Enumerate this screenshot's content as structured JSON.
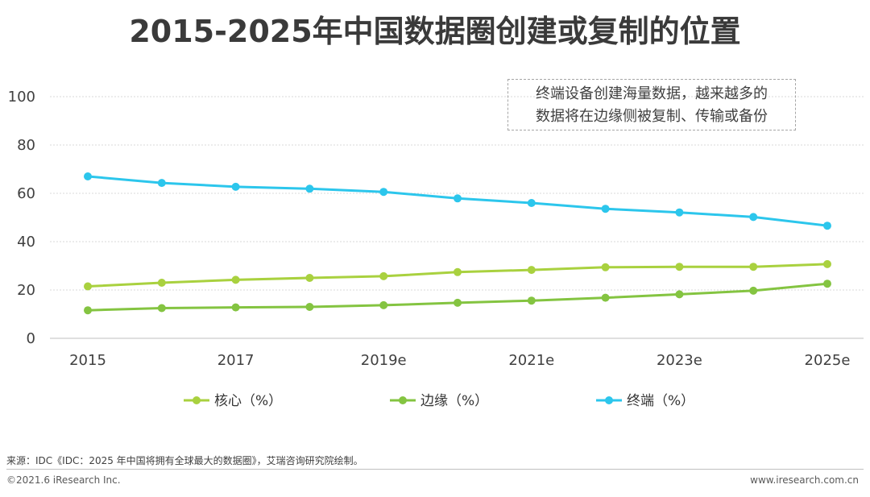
{
  "title": "2015-2025年中国数据圈创建或复制的位置",
  "annotation": {
    "line1": "终端设备创建海量数据，越来越多的",
    "line2": "数据将在边缘侧被复制、传输或备份"
  },
  "footer": {
    "source": "来源：IDC《IDC：2025 年中国将拥有全球最大的数据圈》，艾瑞咨询研究院绘制。",
    "copyright": "©2021.6 iResearch Inc.",
    "site": "www.iresearch.com.cn"
  },
  "chart_data": {
    "type": "line",
    "x": [
      "2015",
      "2016",
      "2017",
      "2018",
      "2019e",
      "2020",
      "2021e",
      "2022",
      "2023e",
      "2024",
      "2025e"
    ],
    "x_tick_labels": [
      "2015",
      "",
      "2017",
      "",
      "2019e",
      "",
      "2021e",
      "",
      "2023e",
      "",
      "2025e"
    ],
    "ylim": [
      0,
      100
    ],
    "yticks": [
      0,
      20,
      40,
      60,
      80,
      100
    ],
    "grid": true,
    "legend_position": "bottom",
    "series": [
      {
        "name": "核心（%）",
        "color": "#a9d13f",
        "values": [
          21.5,
          23,
          24.2,
          25,
          25.7,
          27.4,
          28.3,
          29.4,
          29.6,
          29.6,
          30.7
        ]
      },
      {
        "name": "边缘（%）",
        "color": "#84c441",
        "values": [
          11.6,
          12.5,
          12.8,
          13,
          13.7,
          14.7,
          15.6,
          16.8,
          18.2,
          19.7,
          22.6
        ]
      },
      {
        "name": "终端（%）",
        "color": "#2cc6ec",
        "values": [
          67,
          64.3,
          62.7,
          61.9,
          60.6,
          57.9,
          56,
          53.6,
          52.1,
          50.2,
          46.6
        ]
      }
    ]
  }
}
